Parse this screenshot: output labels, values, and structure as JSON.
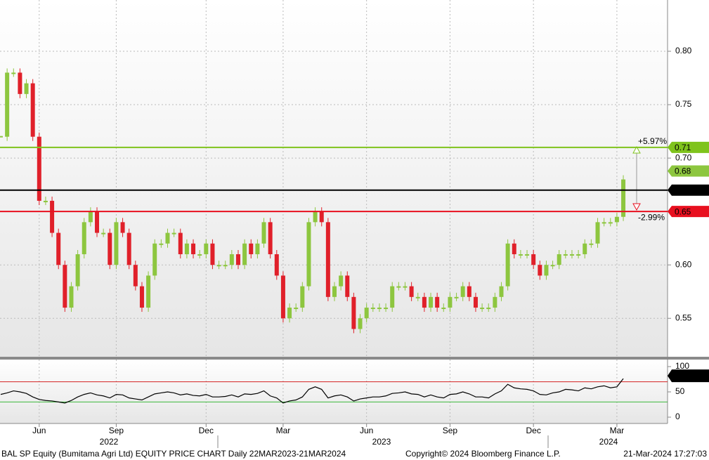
{
  "chart_data": [
    {
      "type": "candlestick",
      "categories": [
        null,
        null,
        null,
        null,
        null,
        null,
        "Jun",
        null,
        null,
        null,
        null,
        null,
        null,
        null,
        null,
        null,
        null,
        null,
        "Sep",
        null,
        null,
        null,
        null,
        null,
        null,
        null,
        null,
        null,
        null,
        null,
        null,
        null,
        "Dec",
        null,
        null,
        null,
        null,
        null,
        null,
        null,
        null,
        null,
        null,
        null,
        "Mar",
        null,
        null,
        null,
        null,
        null,
        null,
        null,
        null,
        null,
        null,
        null,
        null,
        "Jun",
        null,
        null,
        null,
        null,
        null,
        null,
        null,
        null,
        null,
        null,
        null,
        null,
        "Sep",
        null,
        null,
        null,
        null,
        null,
        null,
        null,
        null,
        null,
        null,
        null,
        null,
        "Dec",
        null,
        null,
        null,
        null,
        null,
        null,
        null,
        null,
        null,
        null,
        null,
        null,
        "Mar",
        null,
        null,
        null,
        null,
        null,
        null,
        null
      ],
      "x_years": [
        "2022",
        "2023",
        "2024"
      ],
      "values": [
        0.72,
        0.78,
        0.78,
        0.76,
        0.77,
        0.72,
        0.66,
        0.66,
        0.63,
        0.6,
        0.56,
        0.58,
        0.61,
        0.64,
        0.65,
        0.63,
        0.63,
        0.6,
        0.64,
        0.63,
        0.6,
        0.58,
        0.56,
        0.59,
        0.62,
        0.62,
        0.63,
        0.63,
        0.61,
        0.62,
        0.61,
        0.61,
        0.62,
        0.6,
        0.6,
        0.6,
        0.61,
        0.6,
        0.62,
        0.61,
        0.62,
        0.64,
        0.61,
        0.59,
        0.55,
        0.56,
        0.56,
        0.58,
        0.64,
        0.65,
        0.64,
        0.57,
        0.58,
        0.59,
        0.57,
        0.54,
        0.55,
        0.56,
        0.56,
        0.56,
        0.56,
        0.58,
        0.58,
        0.58,
        0.57,
        0.57,
        0.56,
        0.57,
        0.56,
        0.56,
        0.57,
        0.57,
        0.58,
        0.57,
        0.56,
        0.56,
        0.56,
        0.57,
        0.58,
        0.62,
        0.61,
        0.61,
        0.61,
        0.6,
        0.59,
        0.6,
        0.6,
        0.61,
        0.61,
        0.61,
        0.61,
        0.62,
        0.62,
        0.64,
        0.64,
        0.64,
        0.645,
        0.68,
        null,
        null,
        null,
        null,
        null,
        null
      ],
      "up_color": "#8dc63f",
      "down_color": "#e0202a",
      "ylim": [
        0.514,
        0.848
      ],
      "yticks": [
        {
          "value": 0.55,
          "label": "0.55"
        },
        {
          "value": 0.6,
          "label": "0.60"
        },
        {
          "value": 0.7,
          "label": "0.70"
        },
        {
          "value": 0.75,
          "label": "0.75"
        },
        {
          "value": 0.8,
          "label": "0.80"
        }
      ],
      "grid": true,
      "levels": [
        {
          "value": 0.71,
          "color": "#7fc31c"
        },
        {
          "value": 0.67,
          "color": "#000000"
        },
        {
          "value": 0.65,
          "color": "#e8101f"
        }
      ],
      "annotations": [
        {
          "text": "+5.97%",
          "color": "#7fc31c"
        },
        {
          "text": "-2.99%",
          "color": "#e8101f"
        }
      ]
    },
    {
      "type": "line",
      "values": [
        45,
        48,
        52,
        50,
        47,
        40,
        35,
        33,
        32,
        30,
        28,
        33,
        40,
        45,
        48,
        44,
        42,
        38,
        45,
        44,
        38,
        36,
        34,
        40,
        46,
        48,
        50,
        48,
        44,
        46,
        43,
        42,
        45,
        40,
        40,
        41,
        44,
        40,
        46,
        45,
        47,
        52,
        42,
        38,
        28,
        32,
        34,
        40,
        55,
        60,
        55,
        38,
        42,
        44,
        40,
        32,
        36,
        38,
        40,
        40,
        42,
        47,
        48,
        50,
        46,
        45,
        40,
        44,
        40,
        38,
        45,
        46,
        50,
        46,
        40,
        40,
        38,
        46,
        52,
        65,
        58,
        56,
        55,
        52,
        45,
        44,
        48,
        50,
        55,
        54,
        52,
        58,
        56,
        60,
        62,
        58,
        60,
        76.1489,
        null,
        null,
        null,
        null,
        null,
        null
      ],
      "color": "#000000",
      "ylim": [
        -12.5,
        113.9
      ],
      "yticks": [
        0,
        50,
        100
      ],
      "levels": [
        {
          "value": 70,
          "color": "#d42020"
        },
        {
          "value": 30,
          "color": "#3cb83c"
        }
      ]
    }
  ],
  "footer": {
    "left": "BAL SP Equity (Bumitama Agri Ltd) EQUITY PRICE CHART  Daily 22MAR2023-21MAR2024",
    "center": "Copyright© 2024 Bloomberg Finance L.P.",
    "right": "21-Mar-2024 17:27:03"
  }
}
